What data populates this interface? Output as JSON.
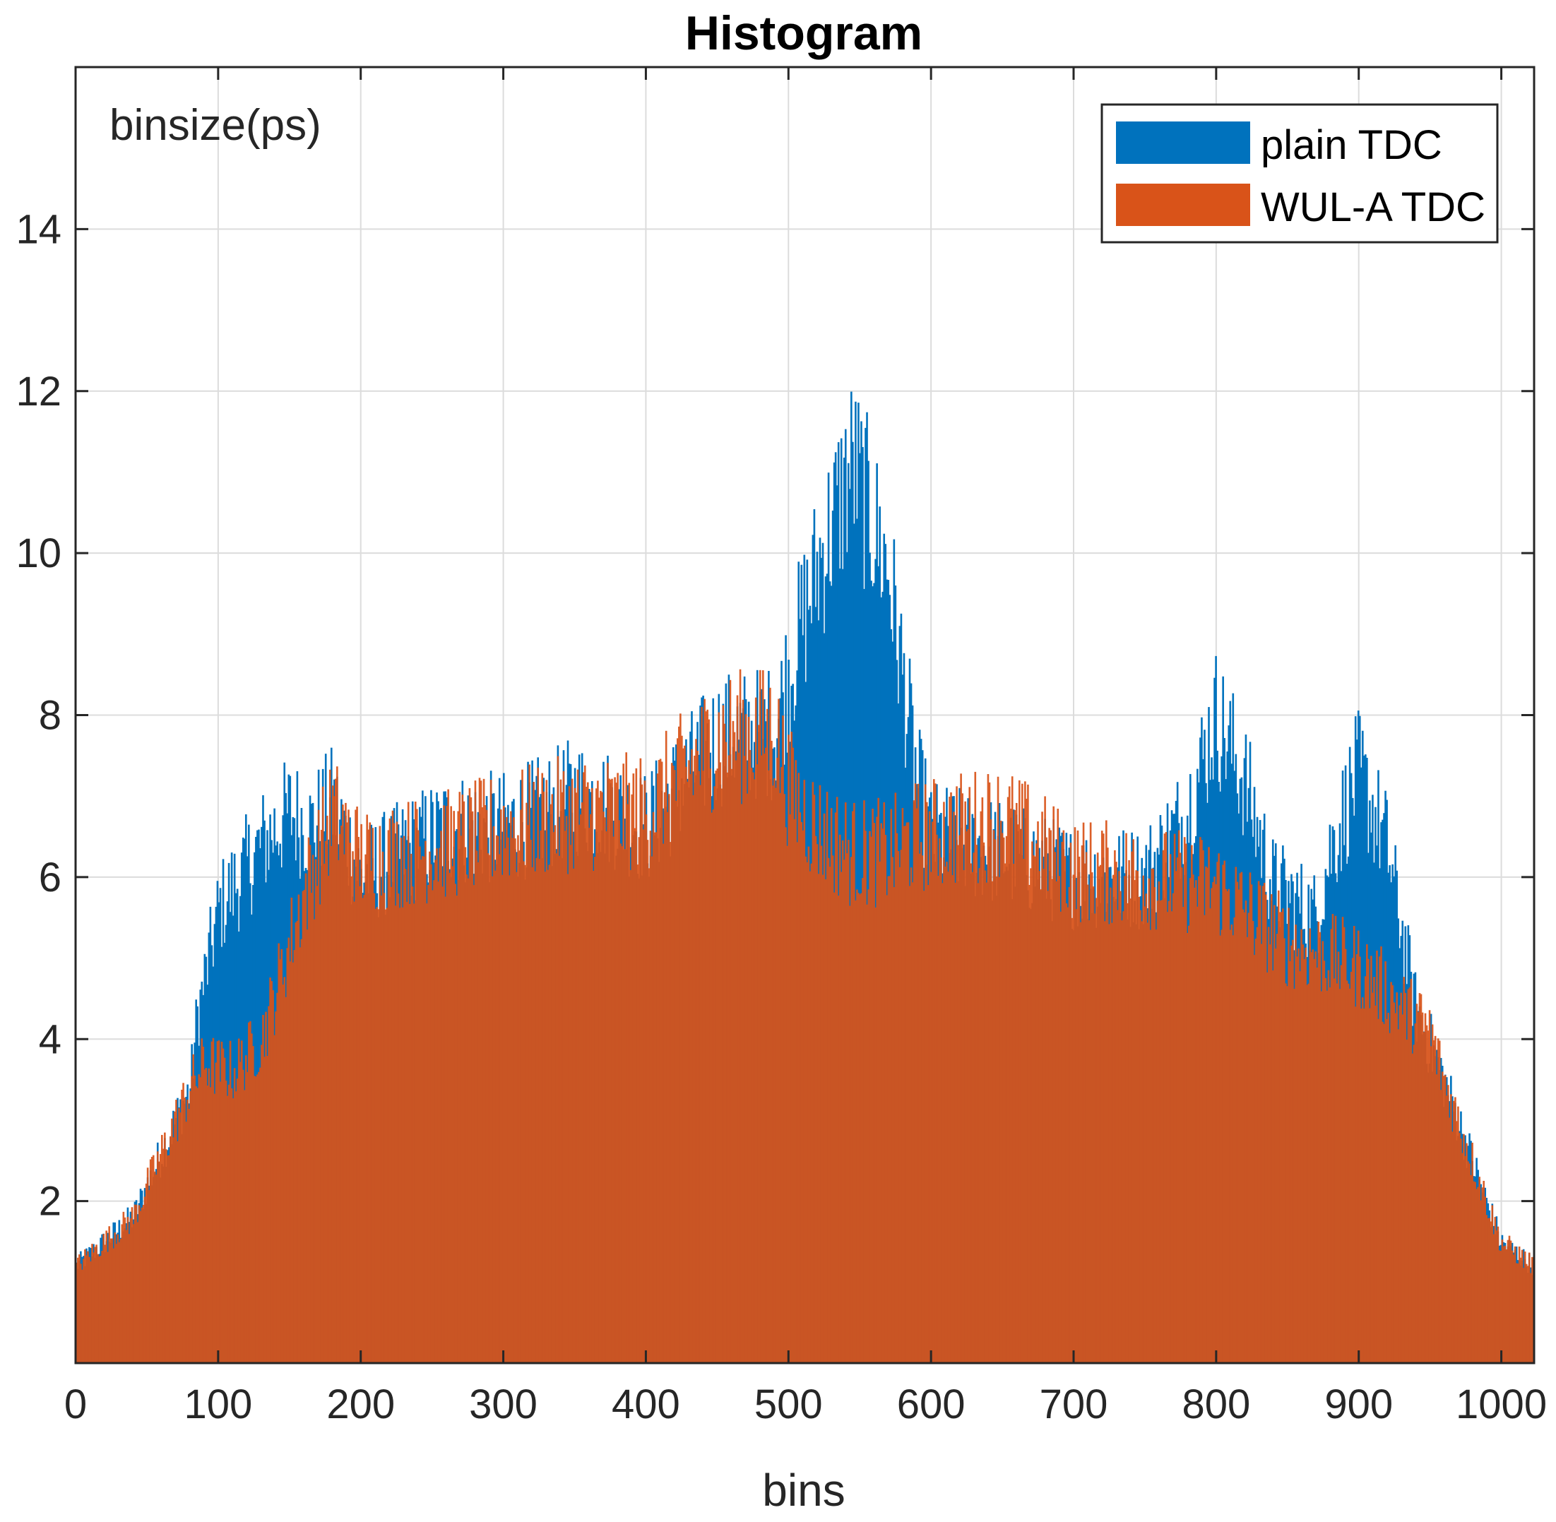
{
  "chart_data": {
    "type": "bar",
    "title": "Histogram",
    "xlabel": "bins",
    "ylabel": "binsize(ps)",
    "xlim": [
      0,
      1023
    ],
    "ylim": [
      0,
      16
    ],
    "xticks": [
      0,
      100,
      200,
      300,
      400,
      500,
      600,
      700,
      800,
      900,
      1000
    ],
    "yticks": [
      2,
      4,
      6,
      8,
      10,
      12,
      14
    ],
    "grid": true,
    "legend_position": "top-right",
    "series": [
      {
        "name": "plain TDC",
        "color": "#0072BD",
        "profile_x": [
          0,
          40,
          80,
          85,
          100,
          130,
          150,
          165,
          180,
          200,
          260,
          300,
          330,
          350,
          370,
          400,
          450,
          490,
          500,
          520,
          545,
          570,
          590,
          600,
          650,
          700,
          750,
          780,
          800,
          820,
          840,
          870,
          880,
          900,
          920,
          940,
          960,
          1000,
          1023
        ],
        "profile_y": [
          1.2,
          1.8,
          3.4,
          4.3,
          5.6,
          6.4,
          6.8,
          6.6,
          6.9,
          6.0,
          6.6,
          6.6,
          6.8,
          7.0,
          6.9,
          6.6,
          7.7,
          7.8,
          8.5,
          9.8,
          11.1,
          9.8,
          7.2,
          6.5,
          6.3,
          6.0,
          6.0,
          6.8,
          8.0,
          7.2,
          5.9,
          5.5,
          6.3,
          7.3,
          6.4,
          4.4,
          3.5,
          1.5,
          1.2
        ]
      },
      {
        "name": "WUL-A TDC",
        "color": "#D95319",
        "profile_x": [
          0,
          40,
          80,
          90,
          110,
          130,
          160,
          180,
          200,
          260,
          300,
          350,
          400,
          450,
          490,
          500,
          520,
          545,
          570,
          590,
          620,
          650,
          700,
          750,
          800,
          850,
          900,
          950,
          960,
          1000,
          1023
        ],
        "profile_y": [
          1.2,
          1.8,
          3.4,
          3.7,
          3.6,
          4.0,
          5.8,
          6.8,
          6.2,
          6.4,
          6.6,
          6.8,
          6.8,
          7.7,
          7.8,
          7.1,
          6.6,
          6.3,
          6.3,
          6.5,
          6.6,
          6.7,
          6.1,
          6.0,
          5.9,
          5.2,
          4.9,
          4.1,
          3.5,
          1.5,
          1.2
        ]
      }
    ]
  }
}
